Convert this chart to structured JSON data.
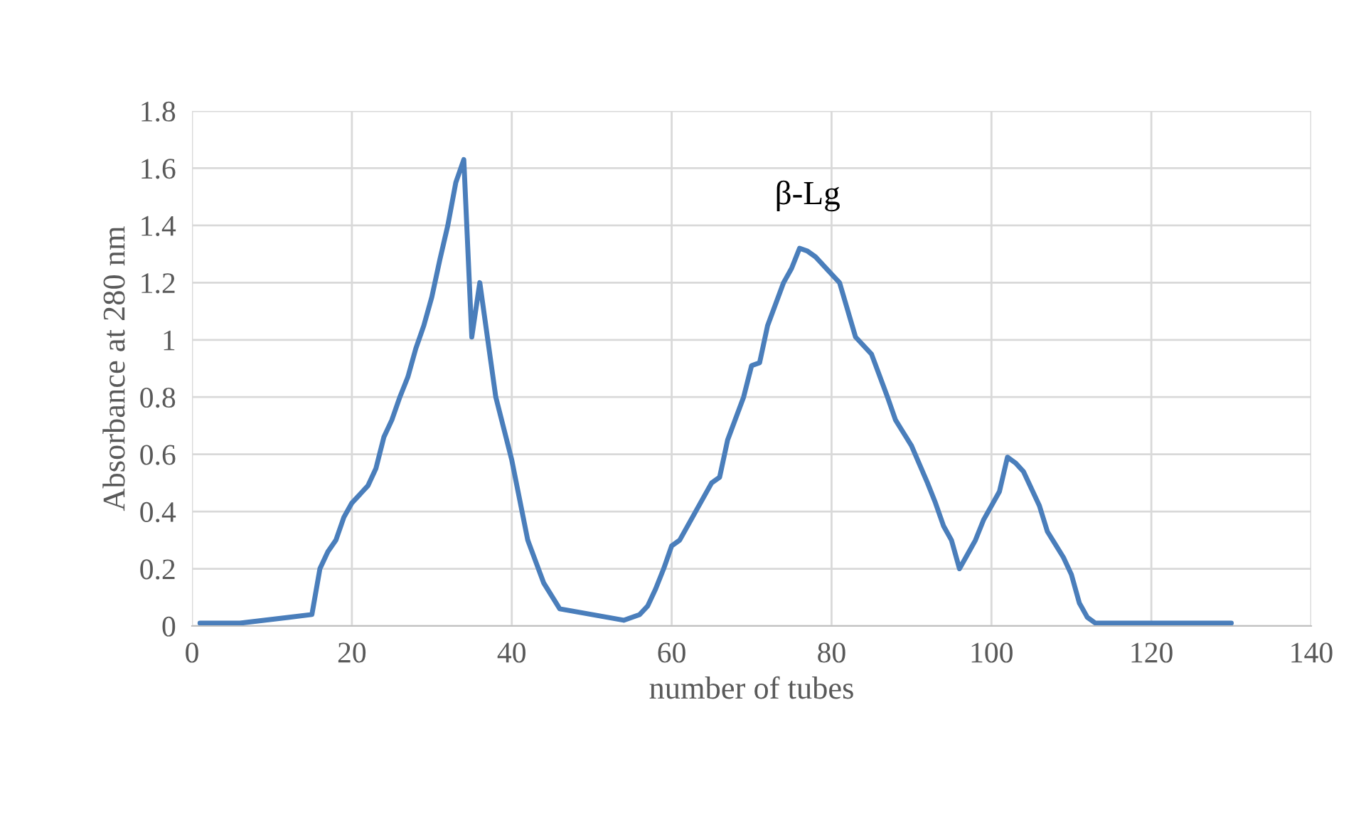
{
  "chart_data": {
    "type": "line",
    "xlabel": "number of tubes",
    "ylabel": "Absorbance at 280 nm",
    "annotations": [
      "β-Lg"
    ],
    "x": [
      1,
      6,
      9,
      12,
      15,
      16,
      17,
      18,
      19,
      20,
      22,
      23,
      24,
      25,
      26,
      27,
      28,
      29,
      30,
      31,
      32,
      33,
      34,
      35,
      36,
      38,
      40,
      42,
      44,
      46,
      50,
      54,
      56,
      57,
      58,
      59,
      60,
      61,
      63,
      65,
      66,
      67,
      69,
      70,
      71,
      72,
      74,
      75,
      76,
      77,
      78,
      80,
      81,
      83,
      85,
      87,
      88,
      90,
      92,
      93,
      94,
      95,
      96,
      97,
      98,
      99,
      101,
      102,
      103,
      104,
      106,
      107,
      109,
      110,
      111,
      112,
      113,
      130
    ],
    "series": [
      {
        "color": "#4a7ebb",
        "values": [
          0.01,
          0.01,
          0.02,
          0.03,
          0.04,
          0.2,
          0.26,
          0.3,
          0.38,
          0.43,
          0.49,
          0.55,
          0.66,
          0.72,
          0.8,
          0.87,
          0.97,
          1.05,
          1.15,
          1.28,
          1.4,
          1.55,
          1.63,
          1.01,
          1.2,
          0.8,
          0.58,
          0.3,
          0.15,
          0.06,
          0.04,
          0.02,
          0.04,
          0.07,
          0.13,
          0.2,
          0.28,
          0.3,
          0.4,
          0.5,
          0.52,
          0.65,
          0.8,
          0.91,
          0.92,
          1.05,
          1.2,
          1.25,
          1.32,
          1.31,
          1.29,
          1.23,
          1.2,
          1.01,
          0.95,
          0.8,
          0.72,
          0.63,
          0.5,
          0.43,
          0.35,
          0.3,
          0.2,
          0.25,
          0.3,
          0.37,
          0.47,
          0.59,
          0.57,
          0.54,
          0.42,
          0.33,
          0.24,
          0.18,
          0.08,
          0.03,
          0.01,
          0.01
        ]
      }
    ],
    "xlim": [
      0,
      140
    ],
    "xticks": [
      0,
      20,
      40,
      60,
      80,
      100,
      120,
      140
    ],
    "ylim": [
      0,
      1.8
    ],
    "yticks": [
      0,
      0.2,
      0.4,
      0.6,
      0.8,
      1,
      1.2,
      1.4,
      1.6,
      1.8
    ],
    "grid": true,
    "line_style": "solid",
    "marker": "none"
  }
}
